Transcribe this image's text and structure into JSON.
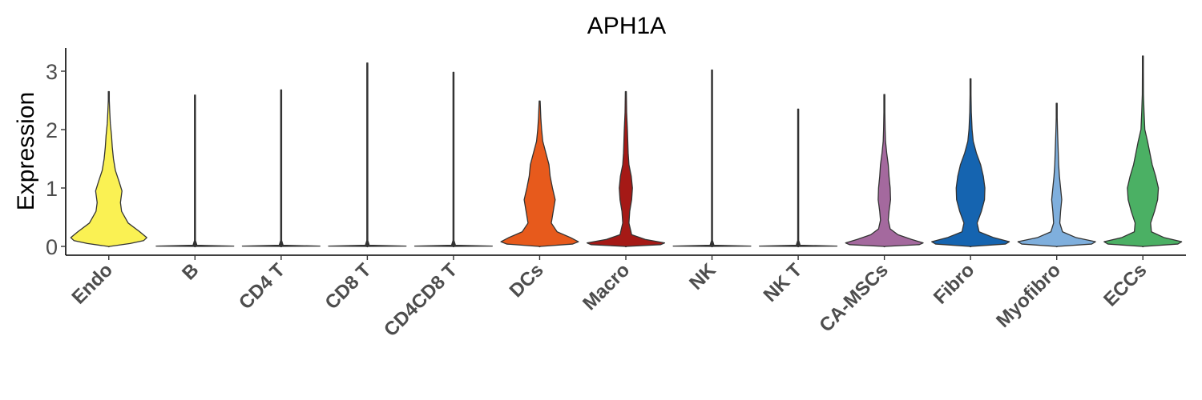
{
  "chart_data": {
    "type": "violin",
    "title": "APH1A",
    "ylabel": "Expression",
    "xlabel": "",
    "ylim": [
      -0.15,
      3.35
    ],
    "yticks": [
      0,
      1,
      2,
      3
    ],
    "grid": false,
    "legend": "none",
    "categories": [
      "Endo",
      "B",
      "CD4 T",
      "CD8 T",
      "CD4CD8 T",
      "DCs",
      "Macro",
      "NK",
      "NK T",
      "CA-MSCs",
      "Fibro",
      "Myofibro",
      "ECCs"
    ],
    "series": [
      {
        "category": "Endo",
        "color": "#FAF153",
        "max": 2.65,
        "density": [
          [
            0,
            0.02
          ],
          [
            0.05,
            0.55
          ],
          [
            0.1,
            0.9
          ],
          [
            0.15,
            0.98
          ],
          [
            0.25,
            0.8
          ],
          [
            0.4,
            0.5
          ],
          [
            0.6,
            0.33
          ],
          [
            0.75,
            0.3
          ],
          [
            0.85,
            0.32
          ],
          [
            0.95,
            0.34
          ],
          [
            1.1,
            0.27
          ],
          [
            1.3,
            0.17
          ],
          [
            1.5,
            0.12
          ],
          [
            1.7,
            0.09
          ],
          [
            1.9,
            0.07
          ],
          [
            2.1,
            0.04
          ],
          [
            2.3,
            0.025
          ],
          [
            2.5,
            0.01
          ],
          [
            2.65,
            0.002
          ]
        ]
      },
      {
        "category": "B",
        "color": "#333333",
        "max": 2.59,
        "density": [
          [
            0,
            0.02
          ],
          [
            0.005,
            1.0
          ],
          [
            0.02,
            0.05
          ],
          [
            0.1,
            0.01
          ],
          [
            2.59,
            0.005
          ]
        ]
      },
      {
        "category": "CD4 T",
        "color": "#333333",
        "max": 2.68,
        "density": [
          [
            0,
            0.02
          ],
          [
            0.005,
            1.0
          ],
          [
            0.02,
            0.05
          ],
          [
            0.1,
            0.01
          ],
          [
            2.68,
            0.005
          ]
        ]
      },
      {
        "category": "CD8 T",
        "color": "#333333",
        "max": 3.14,
        "density": [
          [
            0,
            0.02
          ],
          [
            0.005,
            1.0
          ],
          [
            0.02,
            0.05
          ],
          [
            0.1,
            0.01
          ],
          [
            3.14,
            0.005
          ]
        ]
      },
      {
        "category": "CD4CD8 T",
        "color": "#333333",
        "max": 2.98,
        "density": [
          [
            0,
            0.02
          ],
          [
            0.005,
            1.0
          ],
          [
            0.02,
            0.05
          ],
          [
            0.1,
            0.01
          ],
          [
            2.98,
            0.005
          ]
        ]
      },
      {
        "category": "DCs",
        "color": "#E75A1C",
        "max": 2.49,
        "density": [
          [
            0,
            0.02
          ],
          [
            0.04,
            0.85
          ],
          [
            0.08,
            1.0
          ],
          [
            0.15,
            0.8
          ],
          [
            0.25,
            0.45
          ],
          [
            0.4,
            0.3
          ],
          [
            0.6,
            0.35
          ],
          [
            0.8,
            0.4
          ],
          [
            1.0,
            0.33
          ],
          [
            1.2,
            0.27
          ],
          [
            1.4,
            0.24
          ],
          [
            1.6,
            0.16
          ],
          [
            1.8,
            0.08
          ],
          [
            2.0,
            0.05
          ],
          [
            2.2,
            0.03
          ],
          [
            2.49,
            0.005
          ]
        ]
      },
      {
        "category": "Macro",
        "color": "#A51916",
        "max": 2.65,
        "density": [
          [
            0,
            0.02
          ],
          [
            0.03,
            0.9
          ],
          [
            0.06,
            1.0
          ],
          [
            0.12,
            0.5
          ],
          [
            0.2,
            0.15
          ],
          [
            0.4,
            0.08
          ],
          [
            0.6,
            0.1
          ],
          [
            0.8,
            0.15
          ],
          [
            1.0,
            0.17
          ],
          [
            1.2,
            0.14
          ],
          [
            1.4,
            0.08
          ],
          [
            1.6,
            0.06
          ],
          [
            1.8,
            0.05
          ],
          [
            2.0,
            0.04
          ],
          [
            2.3,
            0.02
          ],
          [
            2.65,
            0.003
          ]
        ]
      },
      {
        "category": "NK",
        "color": "#333333",
        "max": 3.02,
        "density": [
          [
            0,
            0.02
          ],
          [
            0.005,
            1.0
          ],
          [
            0.02,
            0.05
          ],
          [
            0.1,
            0.01
          ],
          [
            3.02,
            0.005
          ]
        ]
      },
      {
        "category": "NK T",
        "color": "#333333",
        "max": 2.35,
        "density": [
          [
            0,
            0.02
          ],
          [
            0.005,
            1.0
          ],
          [
            0.02,
            0.05
          ],
          [
            0.1,
            0.01
          ],
          [
            2.35,
            0.005
          ]
        ]
      },
      {
        "category": "CA-MSCs",
        "color": "#A4699E",
        "max": 2.6,
        "density": [
          [
            0,
            0.02
          ],
          [
            0.03,
            0.9
          ],
          [
            0.06,
            1.0
          ],
          [
            0.12,
            0.7
          ],
          [
            0.2,
            0.35
          ],
          [
            0.3,
            0.15
          ],
          [
            0.45,
            0.1
          ],
          [
            0.6,
            0.12
          ],
          [
            0.8,
            0.16
          ],
          [
            1.0,
            0.15
          ],
          [
            1.2,
            0.12
          ],
          [
            1.4,
            0.1
          ],
          [
            1.6,
            0.06
          ],
          [
            1.8,
            0.03
          ],
          [
            2.0,
            0.02
          ],
          [
            2.3,
            0.01
          ],
          [
            2.6,
            0.002
          ]
        ]
      },
      {
        "category": "Fibro",
        "color": "#1564B0",
        "max": 2.87,
        "density": [
          [
            0,
            0.02
          ],
          [
            0.04,
            0.9
          ],
          [
            0.08,
            1.0
          ],
          [
            0.15,
            0.6
          ],
          [
            0.25,
            0.22
          ],
          [
            0.4,
            0.17
          ],
          [
            0.6,
            0.28
          ],
          [
            0.8,
            0.36
          ],
          [
            1.0,
            0.37
          ],
          [
            1.2,
            0.33
          ],
          [
            1.4,
            0.26
          ],
          [
            1.6,
            0.15
          ],
          [
            1.8,
            0.07
          ],
          [
            2.0,
            0.04
          ],
          [
            2.3,
            0.02
          ],
          [
            2.6,
            0.01
          ],
          [
            2.87,
            0.002
          ]
        ]
      },
      {
        "category": "Myofibro",
        "color": "#7FAFDD",
        "max": 2.45,
        "density": [
          [
            0,
            0.02
          ],
          [
            0.04,
            0.9
          ],
          [
            0.08,
            1.0
          ],
          [
            0.15,
            0.5
          ],
          [
            0.25,
            0.15
          ],
          [
            0.4,
            0.08
          ],
          [
            0.6,
            0.1
          ],
          [
            0.8,
            0.13
          ],
          [
            1.0,
            0.1
          ],
          [
            1.2,
            0.07
          ],
          [
            1.4,
            0.05
          ],
          [
            1.6,
            0.04
          ],
          [
            1.8,
            0.03
          ],
          [
            2.0,
            0.02
          ],
          [
            2.2,
            0.01
          ],
          [
            2.45,
            0.002
          ]
        ]
      },
      {
        "category": "ECCs",
        "color": "#4BB064",
        "max": 3.26,
        "density": [
          [
            0,
            0.02
          ],
          [
            0.04,
            0.9
          ],
          [
            0.08,
            1.0
          ],
          [
            0.15,
            0.55
          ],
          [
            0.25,
            0.22
          ],
          [
            0.4,
            0.2
          ],
          [
            0.6,
            0.3
          ],
          [
            0.8,
            0.38
          ],
          [
            1.0,
            0.4
          ],
          [
            1.2,
            0.33
          ],
          [
            1.4,
            0.24
          ],
          [
            1.6,
            0.18
          ],
          [
            1.8,
            0.12
          ],
          [
            2.0,
            0.05
          ],
          [
            2.3,
            0.03
          ],
          [
            2.6,
            0.015
          ],
          [
            3.0,
            0.005
          ],
          [
            3.26,
            0.001
          ]
        ]
      }
    ]
  }
}
